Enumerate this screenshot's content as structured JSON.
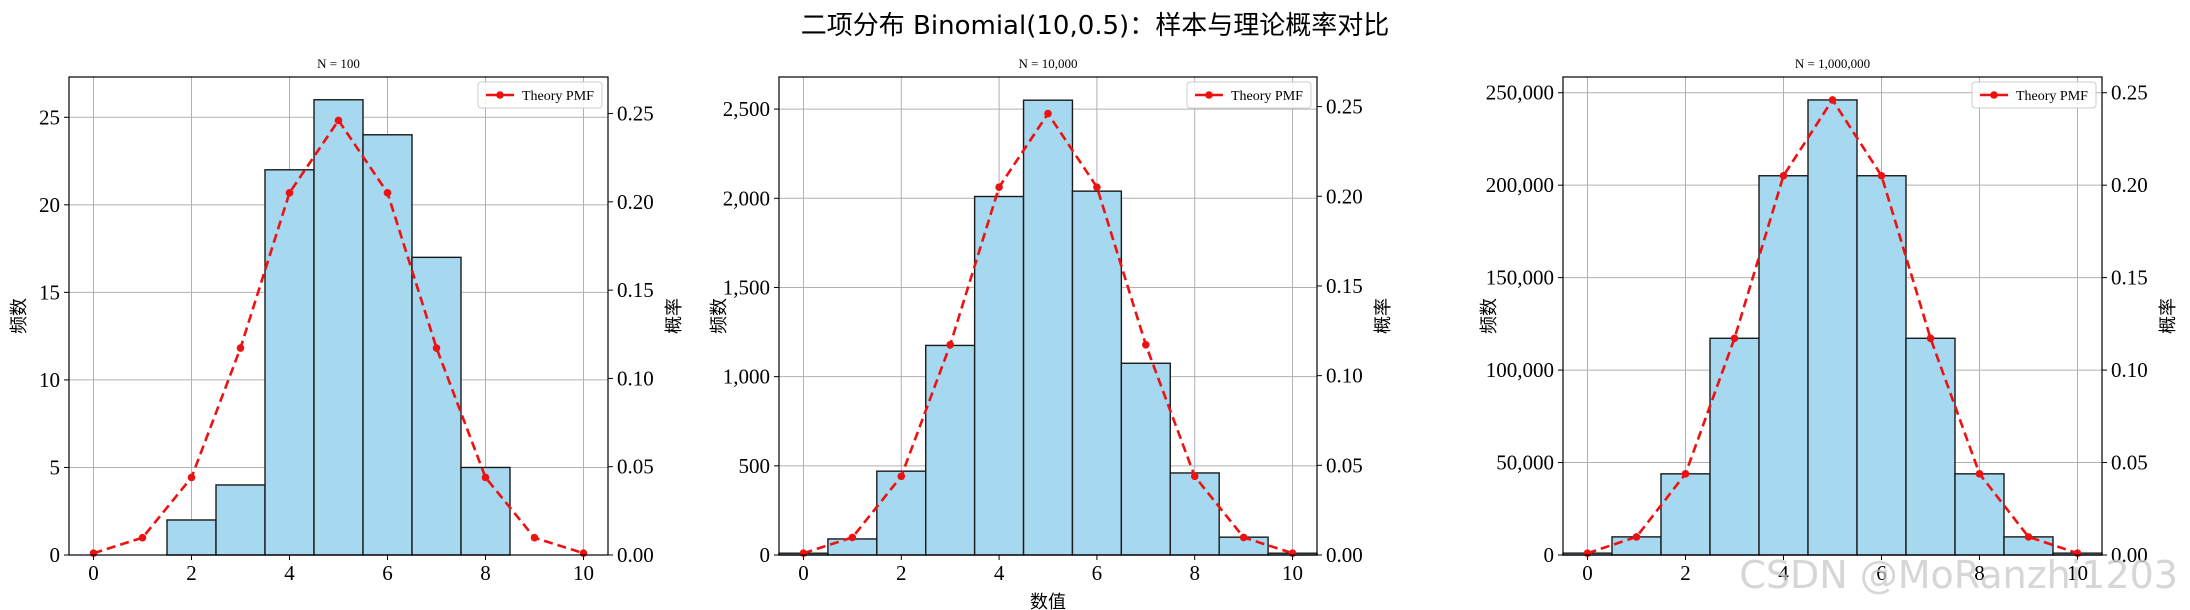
{
  "figure": {
    "title": "二项分布 Binomial(10,0.5)：样本与理论概率对比",
    "watermark": "CSDN @MoRanzhi1203"
  },
  "colors": {
    "bar_fill": "#a6d8ef",
    "bar_edge": "#1a1a1a",
    "pmf_line": "#ee1111",
    "grid": "#b0b0b0"
  },
  "chart_data": [
    {
      "type": "bar",
      "title": "N = 100",
      "xlabel": "",
      "ylabel": "频数",
      "y2label": "概率",
      "x": [
        0,
        1,
        2,
        3,
        4,
        5,
        6,
        7,
        8,
        9,
        10
      ],
      "xlim": [
        -0.5,
        10.5
      ],
      "xticks": [
        0,
        2,
        4,
        6,
        8,
        10
      ],
      "ylim": [
        0,
        27.3
      ],
      "yticks": [
        0,
        5,
        10,
        15,
        20,
        25
      ],
      "ytick_labels": [
        "0",
        "5",
        "10",
        "15",
        "20",
        "25"
      ],
      "y2lim": [
        0,
        0.2707
      ],
      "y2ticks": [
        0,
        0.05,
        0.1,
        0.15,
        0.2,
        0.25
      ],
      "y2tick_labels": [
        "0.00",
        "0.05",
        "0.10",
        "0.15",
        "0.20",
        "0.25"
      ],
      "grid": true,
      "legend_position": "top-right",
      "series": [
        {
          "name": "",
          "type": "bar",
          "axis": "left",
          "values": [
            0,
            0,
            2,
            4,
            22,
            26,
            24,
            17,
            5,
            0,
            0
          ]
        },
        {
          "name": "Theory PMF",
          "type": "line",
          "axis": "right",
          "values": [
            0.001,
            0.0098,
            0.0439,
            0.1172,
            0.2051,
            0.2461,
            0.2051,
            0.1172,
            0.0439,
            0.0098,
            0.001
          ]
        }
      ]
    },
    {
      "type": "bar",
      "title": "N = 10,000",
      "xlabel": "数值",
      "ylabel": "频数",
      "y2label": "概率",
      "x": [
        0,
        1,
        2,
        3,
        4,
        5,
        6,
        7,
        8,
        9,
        10
      ],
      "xlim": [
        -0.5,
        10.5
      ],
      "xticks": [
        0,
        2,
        4,
        6,
        8,
        10
      ],
      "ylim": [
        0,
        2680
      ],
      "yticks": [
        0,
        500,
        1000,
        1500,
        2000,
        2500
      ],
      "ytick_labels": [
        "0",
        "500",
        "1,000",
        "1,500",
        "2,000",
        "2,500"
      ],
      "y2lim": [
        0,
        0.2665
      ],
      "y2ticks": [
        0,
        0.05,
        0.1,
        0.15,
        0.2,
        0.25
      ],
      "y2tick_labels": [
        "0.00",
        "0.05",
        "0.10",
        "0.15",
        "0.20",
        "0.25"
      ],
      "grid": true,
      "legend_position": "top-right",
      "series": [
        {
          "name": "",
          "type": "bar",
          "axis": "left",
          "values": [
            10,
            90,
            470,
            1175,
            2010,
            2550,
            2040,
            1075,
            460,
            100,
            10
          ]
        },
        {
          "name": "Theory PMF",
          "type": "line",
          "axis": "right",
          "values": [
            0.001,
            0.0098,
            0.0439,
            0.1172,
            0.2051,
            0.2461,
            0.2051,
            0.1172,
            0.0439,
            0.0098,
            0.001
          ]
        }
      ]
    },
    {
      "type": "bar",
      "title": "N = 1,000,000",
      "xlabel": "",
      "ylabel": "频数",
      "y2label": "概率",
      "x": [
        0,
        1,
        2,
        3,
        4,
        5,
        6,
        7,
        8,
        9,
        10
      ],
      "xlim": [
        -0.5,
        10.5
      ],
      "xticks": [
        0,
        2,
        4,
        6,
        8,
        10
      ],
      "ylim": [
        0,
        258500
      ],
      "yticks": [
        0,
        50000,
        100000,
        150000,
        200000,
        250000
      ],
      "ytick_labels": [
        "0",
        "50,000",
        "100,000",
        "150,000",
        "200,000",
        "250,000"
      ],
      "y2lim": [
        0,
        0.2585
      ],
      "y2ticks": [
        0,
        0.05,
        0.1,
        0.15,
        0.2,
        0.25
      ],
      "y2tick_labels": [
        "0.00",
        "0.05",
        "0.10",
        "0.15",
        "0.20",
        "0.25"
      ],
      "grid": true,
      "legend_position": "top-right",
      "series": [
        {
          "name": "",
          "type": "bar",
          "axis": "left",
          "values": [
            1000,
            9800,
            43900,
            117200,
            205100,
            246100,
            205100,
            117200,
            43900,
            9800,
            1000
          ]
        },
        {
          "name": "Theory PMF",
          "type": "line",
          "axis": "right",
          "values": [
            0.001,
            0.0098,
            0.0439,
            0.1172,
            0.2051,
            0.2461,
            0.2051,
            0.1172,
            0.0439,
            0.0098,
            0.001
          ]
        }
      ]
    }
  ]
}
